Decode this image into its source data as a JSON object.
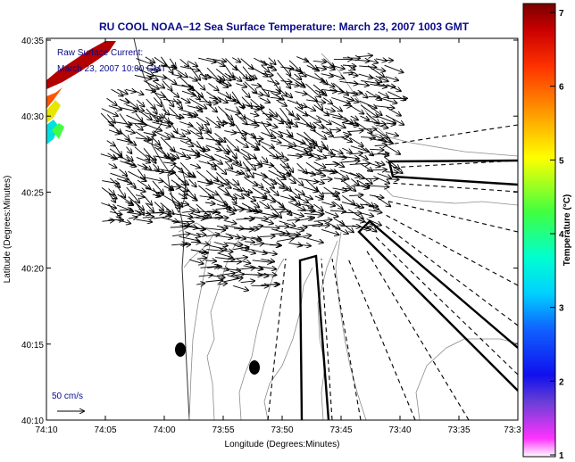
{
  "title": "RU COOL  NOAA−12  Sea Surface Temperature:  March 23, 2007 1003 GMT",
  "overlay_label": "Raw Surface Current:",
  "overlay_time": "March 23, 2007 10:00 GMT",
  "scale_label": "50 cm/s",
  "x_axis": {
    "label": "Longitude (Degrees:Minutes)",
    "ticks": [
      "74:10",
      "74:05",
      "74:00",
      "73:55",
      "73:50",
      "73:45",
      "73:40",
      "73:35",
      "73:3"
    ]
  },
  "y_axis": {
    "label": "Latitude (Degrees:Minutes)",
    "ticks": [
      "40:35",
      "40:30",
      "40:25",
      "40:20",
      "40:15",
      "40:10"
    ]
  },
  "colorbar": {
    "label": "Temperature (°C)",
    "ticks": [
      "7",
      "6",
      "5",
      "4",
      "3",
      "2",
      "1"
    ],
    "min": 1,
    "max": 7,
    "colors": [
      "#ff33ff",
      "#6a3fd6",
      "#1010ee",
      "#1060ff",
      "#00d0ff",
      "#00ffd0",
      "#40ff40",
      "#ffff00",
      "#ff9900",
      "#ff3300",
      "#cc0000",
      "#7a0000"
    ]
  },
  "land_color": "#ffffff",
  "arrow_color": "#000000",
  "contour_color": "#8c8c8c"
}
